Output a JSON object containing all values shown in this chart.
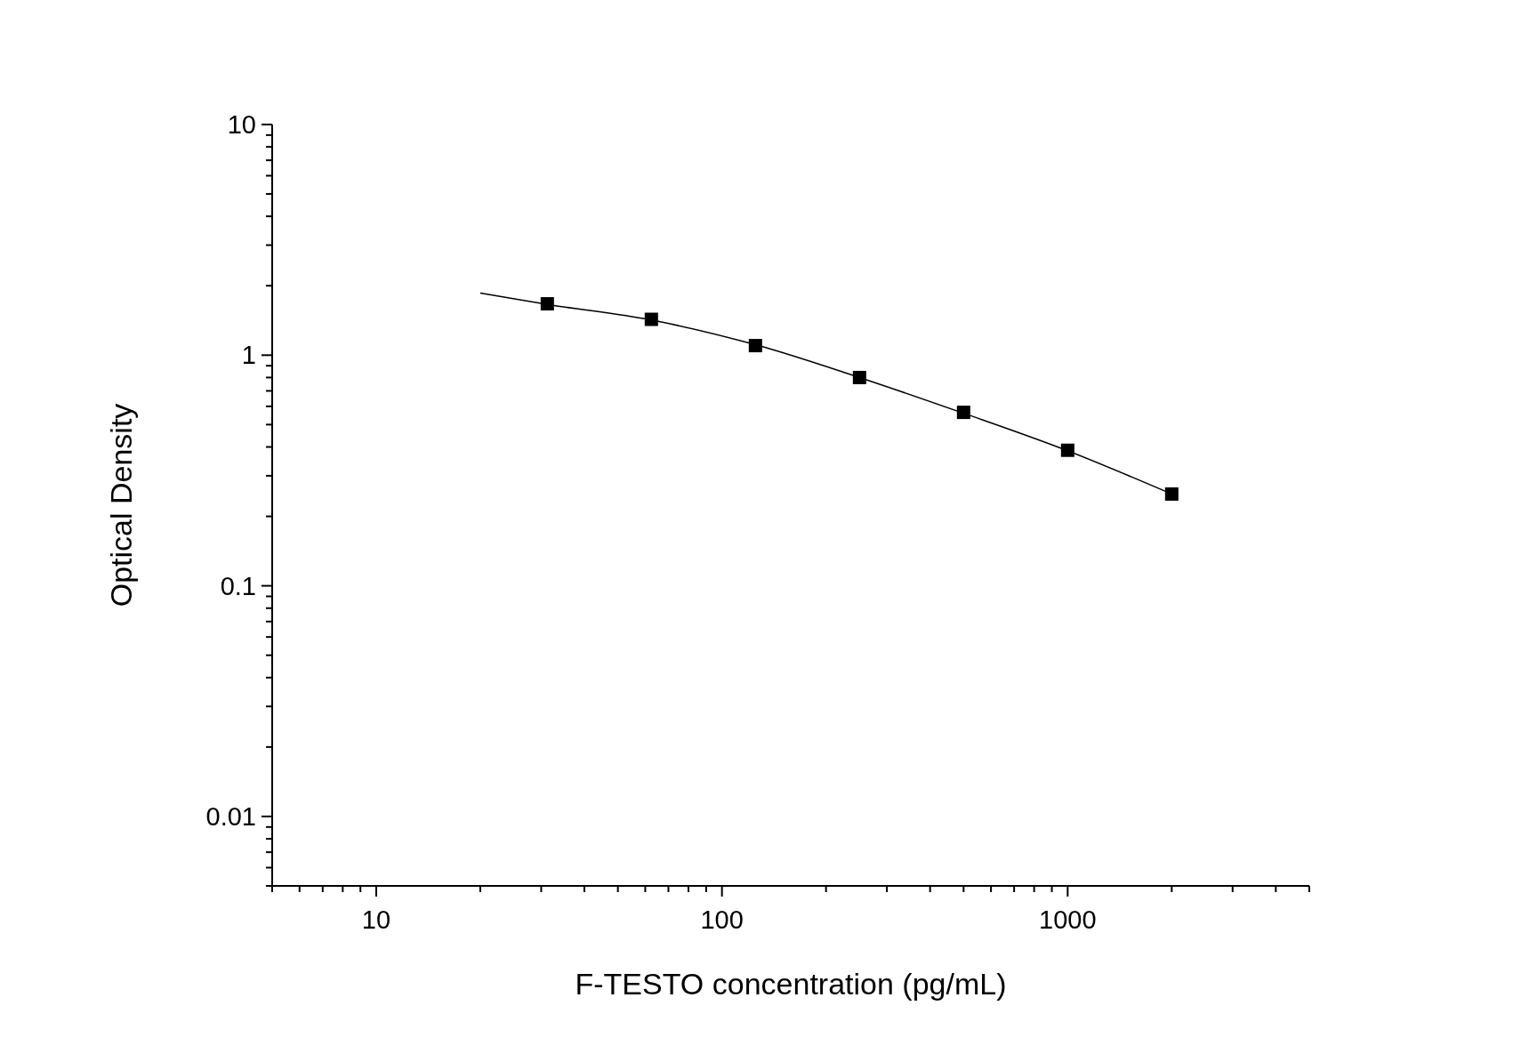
{
  "chart_data": {
    "type": "scatter",
    "log": "xy",
    "xlabel": "F-TESTO concentration (pg/mL)",
    "ylabel": "Optical Density",
    "xlim": [
      5,
      5000
    ],
    "ylim": [
      0.005,
      10
    ],
    "xticks": [
      {
        "value": 5,
        "label": null
      },
      {
        "value": 6,
        "label": null
      },
      {
        "value": 7,
        "label": null
      },
      {
        "value": 8,
        "label": null
      },
      {
        "value": 9,
        "label": null
      },
      10,
      {
        "value": 20,
        "label": null
      },
      {
        "value": 30,
        "label": null
      },
      {
        "value": 40,
        "label": null
      },
      {
        "value": 50,
        "label": null
      },
      {
        "value": 60,
        "label": null
      },
      {
        "value": 70,
        "label": null
      },
      {
        "value": 80,
        "label": null
      },
      {
        "value": 90,
        "label": null
      },
      100,
      {
        "value": 200,
        "label": null
      },
      {
        "value": 300,
        "label": null
      },
      {
        "value": 400,
        "label": null
      },
      {
        "value": 500,
        "label": null
      },
      {
        "value": 600,
        "label": null
      },
      {
        "value": 700,
        "label": null
      },
      {
        "value": 800,
        "label": null
      },
      {
        "value": 900,
        "label": null
      },
      1000,
      {
        "value": 2000,
        "label": null
      },
      {
        "value": 3000,
        "label": null
      },
      {
        "value": 4000,
        "label": null
      },
      {
        "value": 5000,
        "label": null
      }
    ],
    "yticks": [
      {
        "value": 0.005,
        "label": null
      },
      {
        "value": 0.006,
        "label": null
      },
      {
        "value": 0.007,
        "label": null
      },
      {
        "value": 0.008,
        "label": null
      },
      {
        "value": 0.009,
        "label": null
      },
      0.01,
      {
        "value": 0.02,
        "label": null
      },
      {
        "value": 0.03,
        "label": null
      },
      {
        "value": 0.04,
        "label": null
      },
      {
        "value": 0.05,
        "label": null
      },
      {
        "value": 0.06,
        "label": null
      },
      {
        "value": 0.07,
        "label": null
      },
      {
        "value": 0.08,
        "label": null
      },
      {
        "value": 0.09,
        "label": null
      },
      0.1,
      {
        "value": 0.2,
        "label": null
      },
      {
        "value": 0.3,
        "label": null
      },
      {
        "value": 0.4,
        "label": null
      },
      {
        "value": 0.5,
        "label": null
      },
      {
        "value": 0.6,
        "label": null
      },
      {
        "value": 0.7,
        "label": null
      },
      {
        "value": 0.8,
        "label": null
      },
      {
        "value": 0.9,
        "label": null
      },
      1,
      {
        "value": 2,
        "label": null
      },
      {
        "value": 3,
        "label": null
      },
      {
        "value": 4,
        "label": null
      },
      {
        "value": 5,
        "label": null
      },
      {
        "value": 6,
        "label": null
      },
      {
        "value": 7,
        "label": null
      },
      {
        "value": 8,
        "label": null
      },
      {
        "value": 9,
        "label": null
      },
      10
    ],
    "grid": false,
    "series": [
      {
        "marker": "square",
        "color": "#000000",
        "x": [
          31.25,
          62.5,
          125,
          250,
          500,
          1000,
          2000
        ],
        "values": [
          1.67,
          1.43,
          1.1,
          0.8,
          0.565,
          0.387,
          0.25
        ]
      },
      {
        "type": "line",
        "line_style": "solid",
        "color": "#000000",
        "x": [
          20,
          31.25,
          62.5,
          125,
          250,
          500,
          1000,
          2000
        ],
        "values": [
          1.86,
          1.66,
          1.42,
          1.11,
          0.8,
          0.56,
          0.385,
          0.25
        ]
      }
    ]
  }
}
